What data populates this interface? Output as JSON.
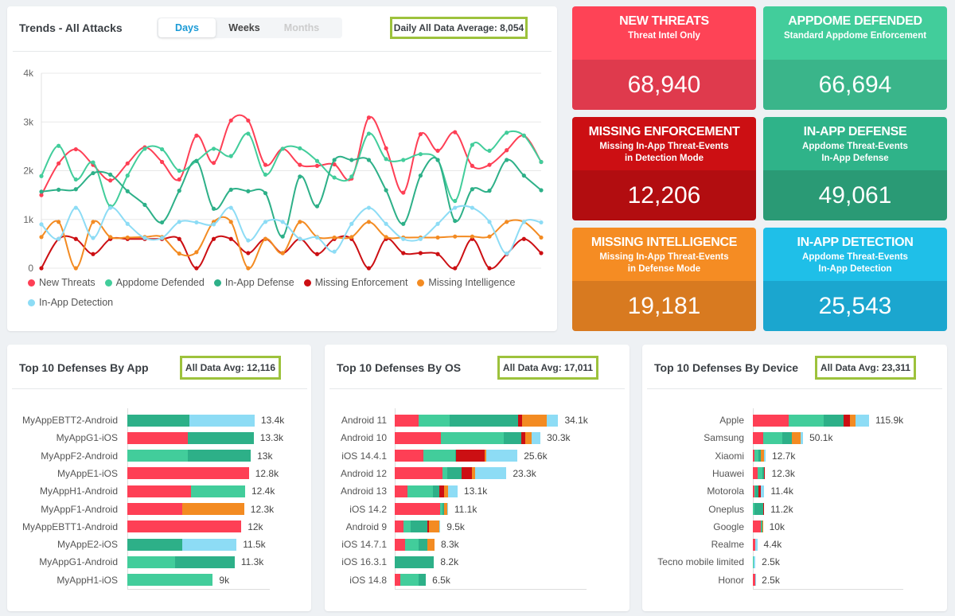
{
  "colors": {
    "new_threats": "#fe3f55",
    "appdome_defended": "#42cd9b",
    "in_app_defense": "#2db088",
    "missing_enforcement": "#cc0f13",
    "missing_intelligence": "#f38b22",
    "in_app_detection": "#8ddcf5"
  },
  "trends": {
    "title": "Trends - All Attacks",
    "tabs": [
      {
        "label": "Days",
        "state": "active"
      },
      {
        "label": "Weeks",
        "state": "normal"
      },
      {
        "label": "Months",
        "state": "disabled"
      }
    ],
    "average_label": "Daily All Data Average: 8,054"
  },
  "cards": [
    {
      "title": "NEW THREATS",
      "subtitle": "Threat Intel Only",
      "subtitle2": "",
      "value": "68,940",
      "top": "#fe4356",
      "bottom": "#df3a4d"
    },
    {
      "title": "APPDOME DEFENDED",
      "subtitle": "Standard Appdome Enforcement",
      "subtitle2": "",
      "value": "66,694",
      "top": "#42cd9b",
      "bottom": "#3ab58a"
    },
    {
      "title": "MISSING ENFORCEMENT",
      "subtitle": "Missing In-App Threat-Events",
      "subtitle2": "in Detection Mode",
      "value": "12,206",
      "top": "#cc0f13",
      "bottom": "#b20d10"
    },
    {
      "title": "IN-APP DEFENSE",
      "subtitle": "Appdome Threat-Events",
      "subtitle2": "In-App Defense",
      "value": "49,061",
      "top": "#2fb389",
      "bottom": "#2a9a75"
    },
    {
      "title": "MISSING INTELLIGENCE",
      "subtitle": "Missing In-App Threat-Events",
      "subtitle2": "in Defense Mode",
      "value": "19,181",
      "top": "#f58c23",
      "bottom": "#d87a20"
    },
    {
      "title": "IN-APP DETECTION",
      "subtitle": "Appdome Threat-Events",
      "subtitle2": "In-App Detection",
      "value": "25,543",
      "top": "#1fbfe8",
      "bottom": "#1ba6cf"
    }
  ],
  "chart_data": [
    {
      "type": "line",
      "title": "Trends - All Attacks",
      "ylim": [
        0,
        4000
      ],
      "yticks": [
        "0",
        "1k",
        "2k",
        "3k",
        "4k"
      ],
      "grid": true,
      "legend_position": "bottom",
      "series": [
        {
          "name": "New Threats",
          "key": "new_threats",
          "values": [
            1500,
            2150,
            2440,
            2120,
            1800,
            2150,
            2480,
            2180,
            1820,
            2720,
            2160,
            3030,
            3030,
            2120,
            2450,
            2120,
            2100,
            2130,
            1840,
            3090,
            2460,
            1550,
            2750,
            2410,
            2790,
            2100,
            2120,
            2420,
            2720,
            2180
          ]
        },
        {
          "name": "Appdome Defended",
          "key": "appdome_defended",
          "values": [
            1890,
            2510,
            1820,
            2170,
            1270,
            1900,
            2450,
            2440,
            2000,
            2200,
            2450,
            2300,
            2760,
            1920,
            2450,
            2460,
            2200,
            1860,
            1880,
            2760,
            2240,
            2220,
            2340,
            2220,
            1380,
            2530,
            2410,
            2780,
            2720,
            2180
          ]
        },
        {
          "name": "In-App Defense",
          "key": "in_app_defense",
          "values": [
            1570,
            1610,
            1620,
            1950,
            1920,
            1580,
            1300,
            940,
            1590,
            2200,
            1220,
            1610,
            1580,
            1540,
            650,
            1880,
            1270,
            2220,
            2220,
            2220,
            1600,
            910,
            1900,
            2220,
            970,
            1620,
            1590,
            2220,
            1900,
            1600
          ]
        },
        {
          "name": "Missing Enforcement",
          "key": "missing_enforcement",
          "values": [
            0,
            600,
            600,
            290,
            600,
            600,
            600,
            600,
            600,
            0,
            600,
            600,
            310,
            600,
            310,
            600,
            290,
            600,
            600,
            0,
            600,
            310,
            310,
            290,
            0,
            600,
            0,
            290,
            600,
            310
          ]
        },
        {
          "name": "Missing Intelligence",
          "key": "missing_intelligence",
          "values": [
            640,
            950,
            0,
            950,
            640,
            630,
            640,
            640,
            300,
            330,
            950,
            950,
            0,
            600,
            310,
            950,
            640,
            630,
            640,
            950,
            640,
            630,
            630,
            630,
            650,
            650,
            650,
            950,
            950,
            630
          ]
        },
        {
          "name": "In-App Detection",
          "key": "in_app_detection",
          "values": [
            900,
            600,
            1240,
            620,
            1240,
            910,
            620,
            620,
            950,
            940,
            900,
            1240,
            570,
            950,
            950,
            600,
            630,
            340,
            910,
            1240,
            910,
            600,
            600,
            910,
            1240,
            1240,
            950,
            300,
            950,
            940
          ]
        }
      ]
    },
    {
      "type": "bar",
      "stacked": true,
      "orientation": "horizontal",
      "title": "Top 10 Defenses By App",
      "badge": "All Data Avg: 12,116",
      "xlim": [
        0,
        15000
      ],
      "series_order": [
        "new_threats",
        "appdome_defended",
        "in_app_defense",
        "missing_enforcement",
        "missing_intelligence",
        "in_app_detection"
      ],
      "rows": [
        {
          "label": "MyAppEBTT2-Android",
          "total": "13.4k",
          "segments": [
            0,
            0,
            6500,
            0,
            0,
            6900
          ]
        },
        {
          "label": "MyAppG1-iOS",
          "total": "13.3k",
          "segments": [
            6400,
            0,
            6900,
            0,
            0,
            0
          ]
        },
        {
          "label": "MyAppF2-Android",
          "total": "13k",
          "segments": [
            0,
            6400,
            6600,
            0,
            0,
            0
          ]
        },
        {
          "label": "MyAppE1-iOS",
          "total": "12.8k",
          "segments": [
            12800,
            0,
            0,
            0,
            0,
            0
          ]
        },
        {
          "label": "MyAppH1-Android",
          "total": "12.4k",
          "segments": [
            6700,
            5700,
            0,
            0,
            0,
            0
          ]
        },
        {
          "label": "MyAppF1-Android",
          "total": "12.3k",
          "segments": [
            5800,
            0,
            0,
            0,
            6500,
            0
          ]
        },
        {
          "label": "MyAppEBTT1-Android",
          "total": "12k",
          "segments": [
            12000,
            0,
            0,
            0,
            0,
            0
          ]
        },
        {
          "label": "MyAppE2-iOS",
          "total": "11.5k",
          "segments": [
            0,
            0,
            5800,
            0,
            0,
            5700
          ]
        },
        {
          "label": "MyAppG1-Android",
          "total": "11.3k",
          "segments": [
            0,
            5000,
            6300,
            0,
            0,
            0
          ]
        },
        {
          "label": "MyAppH1-iOS",
          "total": "9k",
          "segments": [
            0,
            9000,
            0,
            0,
            0,
            0
          ]
        }
      ]
    },
    {
      "type": "bar",
      "stacked": true,
      "orientation": "horizontal",
      "title": "Top 10 Defenses By OS",
      "badge": "All Data Avg: 17,011",
      "xlim": [
        0,
        40000
      ],
      "series_order": [
        "new_threats",
        "appdome_defended",
        "in_app_defense",
        "missing_enforcement",
        "missing_intelligence",
        "in_app_detection"
      ],
      "rows": [
        {
          "label": "Android 11",
          "total": "34.1k",
          "segments": [
            5000,
            6400,
            14300,
            800,
            5200,
            2400
          ]
        },
        {
          "label": "Android 10",
          "total": "30.3k",
          "segments": [
            9700,
            13100,
            3600,
            800,
            1300,
            1900
          ]
        },
        {
          "label": "iOS 14.4.1",
          "total": "25.6k",
          "segments": [
            6000,
            6600,
            200,
            6000,
            300,
            6500
          ]
        },
        {
          "label": "Android 12",
          "total": "23.3k",
          "segments": [
            9900,
            1000,
            3000,
            2200,
            700,
            6500
          ]
        },
        {
          "label": "Android 13",
          "total": "13.1k",
          "segments": [
            2700,
            5300,
            1300,
            1000,
            900,
            1900
          ]
        },
        {
          "label": "iOS 14.2",
          "total": "11.1k",
          "segments": [
            9400,
            600,
            300,
            0,
            700,
            100
          ]
        },
        {
          "label": "Android 9",
          "total": "9.5k",
          "segments": [
            1800,
            1600,
            3400,
            400,
            2100,
            200
          ]
        },
        {
          "label": "iOS 14.7.1",
          "total": "8.3k",
          "segments": [
            2200,
            2700,
            1900,
            0,
            1500,
            0
          ]
        },
        {
          "label": "iOS 16.3.1",
          "total": "8.2k",
          "segments": [
            0,
            0,
            8200,
            0,
            0,
            0
          ]
        },
        {
          "label": "iOS 14.8",
          "total": "6.5k",
          "segments": [
            1200,
            3800,
            1500,
            0,
            0,
            0
          ]
        }
      ]
    },
    {
      "type": "bar",
      "stacked": true,
      "orientation": "horizontal",
      "title": "Top 10 Defenses By Device",
      "badge": "All Data Avg: 23,311",
      "xlim": [
        0,
        150000
      ],
      "series_order": [
        "new_threats",
        "appdome_defended",
        "in_app_defense",
        "missing_enforcement",
        "missing_intelligence",
        "in_app_detection"
      ],
      "rows": [
        {
          "label": "Apple",
          "total": "115.9k",
          "segments": [
            36100,
            34200,
            19800,
            6600,
            6100,
            13100
          ]
        },
        {
          "label": "Samsung",
          "total": "50.1k",
          "segments": [
            10300,
            18700,
            10000,
            0,
            9000,
            2100
          ]
        },
        {
          "label": "Xiaomi",
          "total": "12.7k",
          "segments": [
            1300,
            4000,
            2700,
            0,
            3200,
            1500
          ]
        },
        {
          "label": "Huawei",
          "total": "12.3k",
          "segments": [
            4500,
            5000,
            1600,
            1200,
            0,
            0
          ]
        },
        {
          "label": "Motorola",
          "total": "11.4k",
          "segments": [
            1600,
            1100,
            2900,
            2400,
            300,
            3100
          ]
        },
        {
          "label": "Oneplus",
          "total": "11.2k",
          "segments": [
            300,
            1300,
            8600,
            1000,
            0,
            0
          ]
        },
        {
          "label": "Google",
          "total": "10k",
          "segments": [
            8200,
            500,
            500,
            0,
            800,
            0
          ]
        },
        {
          "label": "Realme",
          "total": "4.4k",
          "segments": [
            2000,
            0,
            0,
            500,
            0,
            1900
          ]
        },
        {
          "label": "Tecno mobile limited",
          "total": "2.5k",
          "segments": [
            0,
            500,
            0,
            0,
            0,
            2000
          ]
        },
        {
          "label": "Honor",
          "total": "2.5k",
          "segments": [
            2000,
            0,
            0,
            0,
            0,
            500
          ]
        }
      ]
    }
  ]
}
